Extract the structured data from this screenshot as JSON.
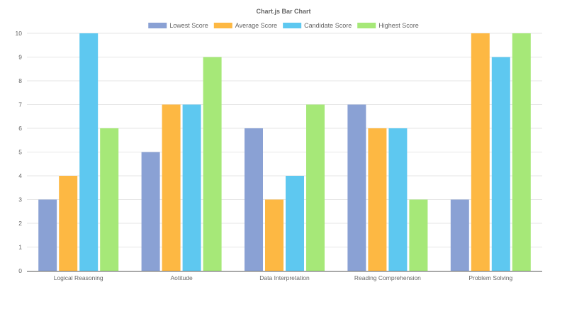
{
  "chart_data": {
    "type": "bar",
    "title": "Chart.js Bar Chart",
    "categories": [
      "Logical Reasoning",
      "Aotitude",
      "Data Interpretation",
      "Reading Comprehension",
      "Problem Solving"
    ],
    "series": [
      {
        "name": "Lowest Score",
        "color": "#8aa1d4",
        "values": [
          3,
          5,
          6,
          7,
          3
        ]
      },
      {
        "name": "Average Score",
        "color": "#fdb843",
        "values": [
          4,
          7,
          3,
          6,
          10
        ]
      },
      {
        "name": "Candidate Score",
        "color": "#5ec8f0",
        "values": [
          10,
          7,
          4,
          6,
          9
        ]
      },
      {
        "name": "Highest Score",
        "color": "#a6e878",
        "values": [
          6,
          9,
          7,
          3,
          10
        ]
      }
    ],
    "ylim": [
      0,
      10
    ],
    "yticks": [
      0,
      1,
      2,
      3,
      4,
      5,
      6,
      7,
      8,
      9,
      10
    ],
    "xlabel": "",
    "ylabel": "",
    "grid": true,
    "legend_position": "top"
  }
}
